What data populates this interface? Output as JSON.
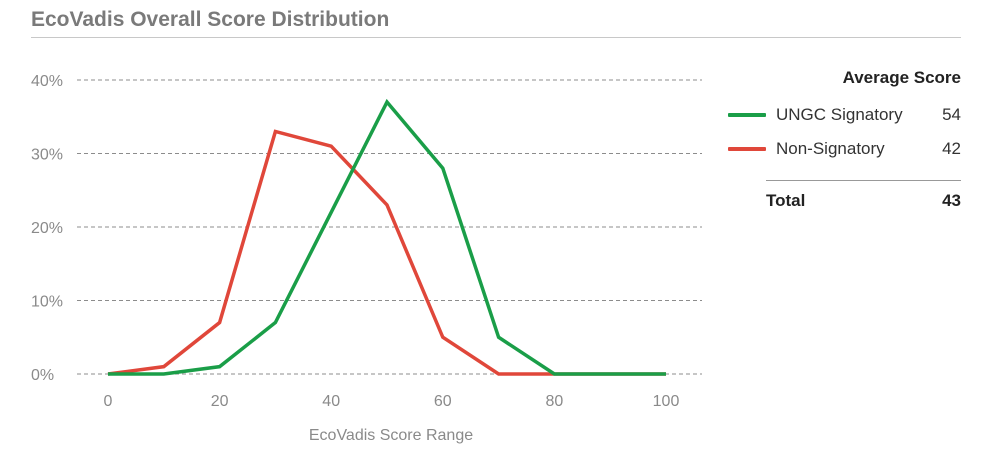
{
  "title": "EcoVadis Overall Score Distribution",
  "legend": {
    "header": "Average Score",
    "items": [
      {
        "label": "UNGC Signatory",
        "value": "54",
        "color": "#1a9e48"
      },
      {
        "label": "Non-Signatory",
        "value": "42",
        "color": "#e0473a"
      }
    ],
    "total_label": "Total",
    "total_value": "43"
  },
  "chart_data": {
    "type": "line",
    "title": "EcoVadis Overall Score Distribution",
    "xlabel": "EcoVadis Score Range",
    "ylabel": "",
    "x": [
      0,
      10,
      20,
      30,
      40,
      50,
      60,
      70,
      80,
      90,
      100
    ],
    "x_ticks": [
      "0",
      "20",
      "40",
      "60",
      "80",
      "100"
    ],
    "y_ticks": [
      "0%",
      "10%",
      "20%",
      "30%",
      "40%"
    ],
    "xlim": [
      0,
      100
    ],
    "ylim": [
      0,
      40
    ],
    "grid": "horizontal-dashed",
    "legend_position": "right",
    "series": [
      {
        "name": "UNGC Signatory",
        "color": "#1a9e48",
        "values": [
          0,
          0,
          1,
          7,
          22,
          37,
          28,
          5,
          0,
          0,
          0
        ]
      },
      {
        "name": "Non-Signatory",
        "color": "#e0473a",
        "values": [
          0,
          1,
          7,
          33,
          31,
          23,
          5,
          0,
          0,
          0,
          0
        ]
      }
    ]
  }
}
